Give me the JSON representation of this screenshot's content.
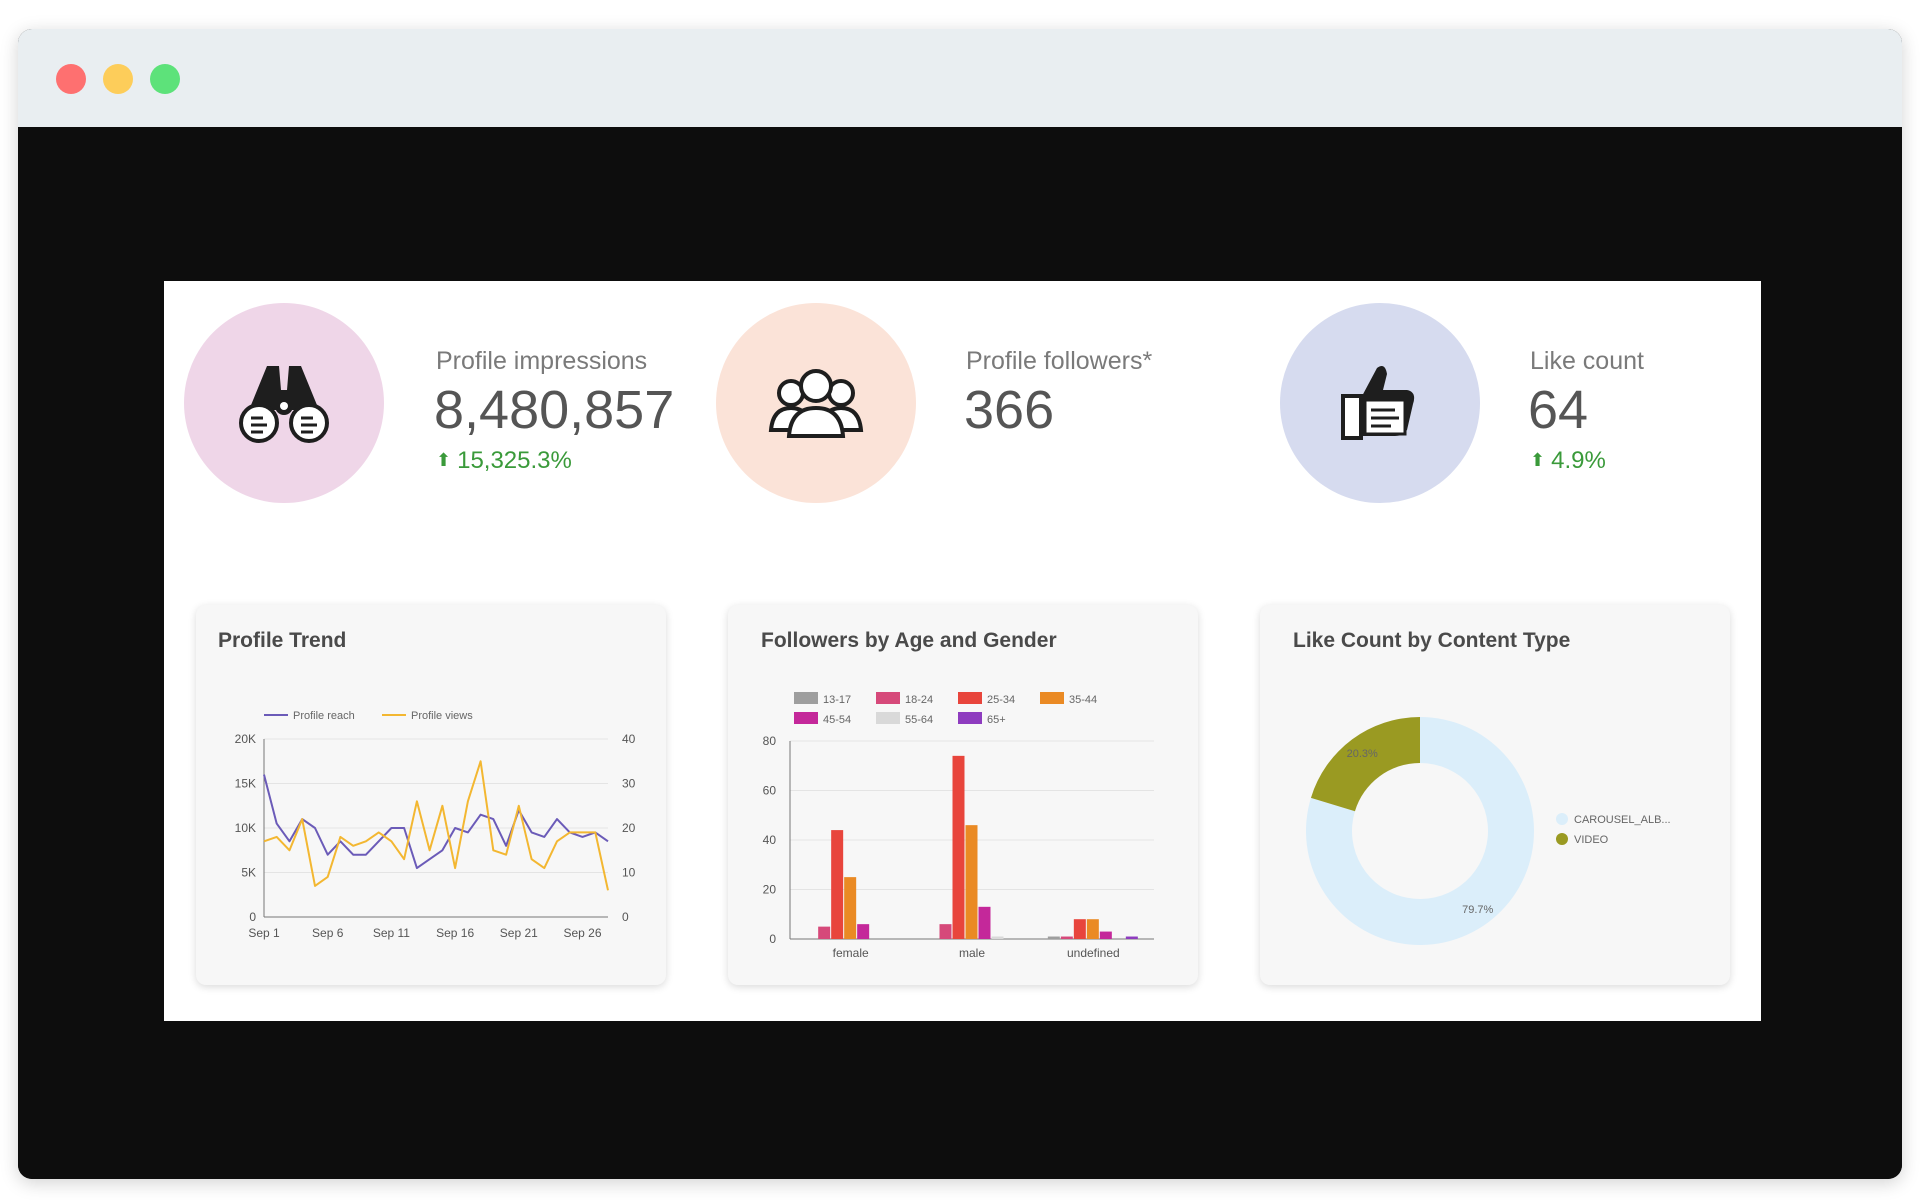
{
  "kpis": [
    {
      "label": "Profile impressions",
      "value": "8,480,857",
      "delta": "15,325.3%",
      "icon": "binoculars-icon",
      "circle_color": "#efd6e8"
    },
    {
      "label": "Profile followers*",
      "value": "366",
      "delta": "",
      "icon": "people-group-icon",
      "circle_color": "#fbe3d8"
    },
    {
      "label": "Like count",
      "value": "64",
      "delta": "4.9%",
      "icon": "thumbs-up-icon",
      "circle_color": "#d6dbef"
    }
  ],
  "colors": {
    "delta_up": "#3a9a3a",
    "reach": "#6b5bb8",
    "views": "#f3b731"
  },
  "chart_data": [
    {
      "type": "line",
      "title": "Profile Trend",
      "x_ticks": [
        "Sep 1",
        "Sep 6",
        "Sep 11",
        "Sep 16",
        "Sep 21",
        "Sep 26"
      ],
      "y_left_ticks": [
        "0",
        "5K",
        "10K",
        "15K",
        "20K"
      ],
      "y_right_ticks": [
        "0",
        "10",
        "20",
        "30",
        "40"
      ],
      "ylim_left": [
        0,
        20000
      ],
      "ylim_right": [
        0,
        40
      ],
      "series": [
        {
          "name": "Profile reach",
          "axis": "left",
          "color": "#6b5bb8",
          "values": [
            16000,
            10500,
            8500,
            11000,
            10000,
            7000,
            8500,
            7000,
            7000,
            8500,
            10000,
            10000,
            5500,
            6500,
            7500,
            10000,
            9500,
            11500,
            11000,
            8000,
            12000,
            9500,
            9000,
            11000,
            9500,
            9000,
            9500,
            8500
          ]
        },
        {
          "name": "Profile views",
          "axis": "left",
          "color": "#f3b731",
          "values": [
            8500,
            9000,
            7500,
            11000,
            3500,
            4500,
            9000,
            8000,
            8500,
            9500,
            8500,
            6500,
            13000,
            7500,
            12500,
            5500,
            13000,
            17500,
            7500,
            7000,
            12500,
            6500,
            5500,
            8500,
            9500,
            9500,
            9500,
            3000
          ]
        }
      ]
    },
    {
      "type": "bar",
      "title": "Followers by Age and Gender",
      "categories": [
        "female",
        "male",
        "undefined"
      ],
      "y_ticks": [
        "0",
        "20",
        "40",
        "60",
        "80"
      ],
      "ylim": [
        0,
        80
      ],
      "series": [
        {
          "name": "13-17",
          "color": "#9e9e9e",
          "values": [
            0,
            0,
            1
          ]
        },
        {
          "name": "18-24",
          "color": "#d6497a",
          "values": [
            5,
            6,
            1
          ]
        },
        {
          "name": "25-34",
          "color": "#e8453c",
          "values": [
            44,
            74,
            8
          ]
        },
        {
          "name": "35-44",
          "color": "#ea8a24",
          "values": [
            25,
            46,
            8
          ]
        },
        {
          "name": "45-54",
          "color": "#c4289a",
          "values": [
            6,
            13,
            3
          ]
        },
        {
          "name": "55-64",
          "color": "#d9d9d9",
          "values": [
            0,
            1,
            0
          ]
        },
        {
          "name": "65+",
          "color": "#8e3cbf",
          "values": [
            0,
            0,
            1
          ]
        }
      ]
    },
    {
      "type": "pie",
      "title": "Like Count by Content Type",
      "slices": [
        {
          "name": "CAROUSEL_ALB...",
          "value": 79.7,
          "label": "79.7%",
          "color": "#dbeefa"
        },
        {
          "name": "VIDEO",
          "value": 20.3,
          "label": "20.3%",
          "color": "#9a9a22"
        }
      ]
    }
  ]
}
